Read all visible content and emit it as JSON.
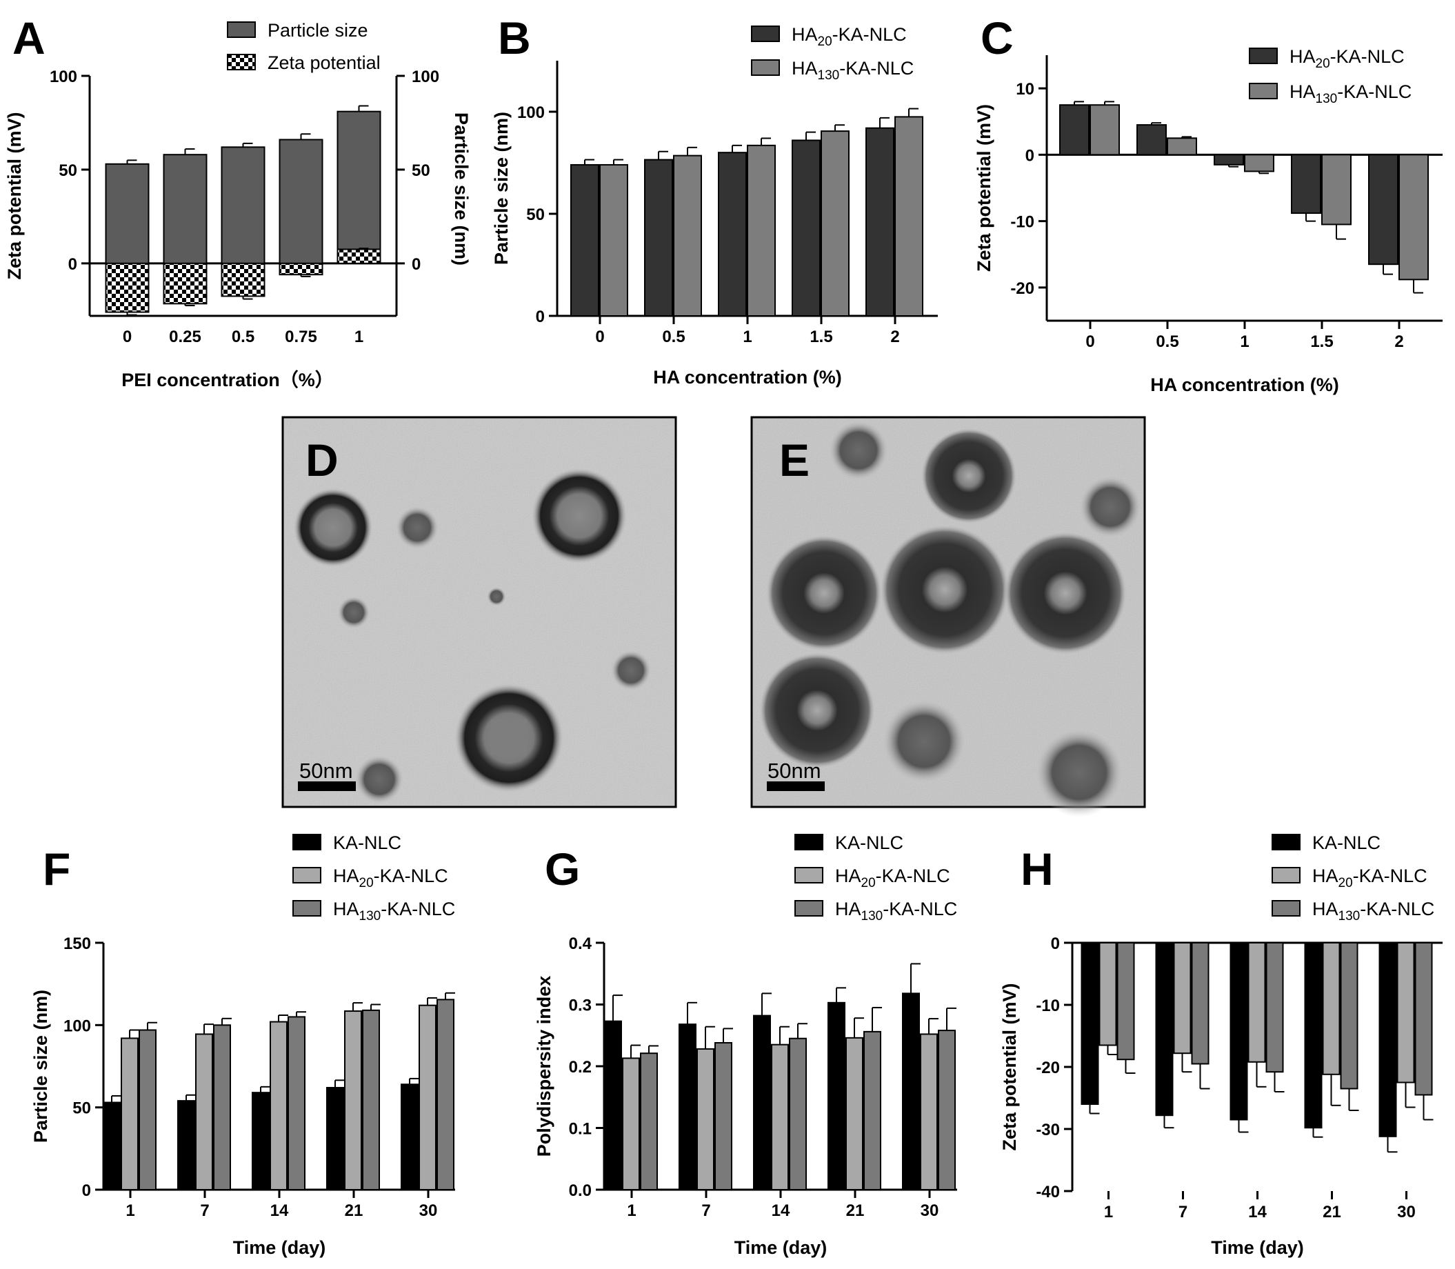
{
  "chart_data": [
    {
      "panel": "A",
      "type": "bar",
      "categories": [
        "0",
        "0.25",
        "0.5",
        "0.75",
        "1"
      ],
      "xlabel": "PEI concentration（%）",
      "ylabel_left": "Zeta potential (mV)",
      "ylabel_right": "Particle size (nm)",
      "ylim": [
        -28,
        100
      ],
      "yticks": [
        0,
        50,
        100
      ],
      "yticks_right": [
        0,
        50,
        100
      ],
      "series": [
        {
          "name": "Particle size",
          "values": [
            53,
            58,
            62,
            66,
            81
          ],
          "errors": [
            2,
            3,
            2,
            3,
            3
          ],
          "color": "#5c5c5c"
        },
        {
          "name": "Zeta potential",
          "values": [
            -26,
            -21.5,
            -17.5,
            -6,
            7.5
          ],
          "errors": [
            1.5,
            1,
            1.5,
            1,
            0.5
          ],
          "color": "checker"
        }
      ],
      "legend": "top-right"
    },
    {
      "panel": "B",
      "type": "bar",
      "categories": [
        "0",
        "0.5",
        "1",
        "1.5",
        "2"
      ],
      "xlabel": "HA concentration (%)",
      "ylabel": "Particle size (nm)",
      "ylim": [
        0,
        125
      ],
      "yticks": [
        0,
        50,
        100
      ],
      "series": [
        {
          "name": "HA20-KA-NLC",
          "name_main": "HA",
          "name_sub": "20",
          "name_tail": "-KA-NLC",
          "values": [
            74,
            76.5,
            80,
            86,
            92
          ],
          "errors": [
            2.5,
            4,
            3.5,
            4,
            5
          ],
          "color": "#333333"
        },
        {
          "name": "HA130-KA-NLC",
          "name_main": "HA",
          "name_sub": "130",
          "name_tail": "-KA-NLC",
          "values": [
            74,
            78.5,
            83.5,
            90.5,
            97.5
          ],
          "errors": [
            2.5,
            4,
            3.5,
            3,
            4
          ],
          "color": "#7d7d7d"
        }
      ],
      "legend": "top-right"
    },
    {
      "panel": "C",
      "type": "bar",
      "categories": [
        "0",
        "0.5",
        "1",
        "1.5",
        "2"
      ],
      "xlabel": "HA concentration (%)",
      "ylabel": "Zeta potential (mV)",
      "ylim": [
        -25,
        15
      ],
      "yticks": [
        10,
        0,
        -10,
        -20
      ],
      "zero_line": true,
      "series": [
        {
          "name": "HA20-KA-NLC",
          "name_main": "HA",
          "name_sub": "20",
          "name_tail": "-KA-NLC",
          "values": [
            7.5,
            4.5,
            -1.5,
            -8.8,
            -16.5
          ],
          "errors": [
            0.5,
            0.3,
            0.3,
            1.2,
            1.5
          ],
          "color": "#333333"
        },
        {
          "name": "HA130-KA-NLC",
          "name_main": "HA",
          "name_sub": "130",
          "name_tail": "-KA-NLC",
          "values": [
            7.5,
            2.5,
            -2.5,
            -10.5,
            -18.8
          ],
          "errors": [
            0.5,
            0.2,
            0.3,
            2.2,
            2
          ],
          "color": "#7d7d7d"
        }
      ],
      "legend": "top-right"
    },
    {
      "panel": "F",
      "type": "bar",
      "categories": [
        "1",
        "7",
        "14",
        "21",
        "30"
      ],
      "xlabel": "Time (day)",
      "ylabel": "Particle size (nm)",
      "ylim": [
        0,
        150
      ],
      "yticks": [
        0,
        50,
        100,
        150
      ],
      "series": [
        {
          "name": "KA-NLC",
          "name_main": "KA-NLC",
          "name_sub": "",
          "name_tail": "",
          "values": [
            53,
            54,
            59,
            62,
            64
          ],
          "errors": [
            4,
            3.5,
            3.5,
            4.5,
            3.5
          ],
          "color": "#000000"
        },
        {
          "name": "HA20-KA-NLC",
          "name_main": "HA",
          "name_sub": "20",
          "name_tail": "-KA-NLC",
          "values": [
            92,
            94.5,
            102,
            108.5,
            112
          ],
          "errors": [
            5,
            6,
            4,
            5,
            4.5
          ],
          "color": "#a8a8a8"
        },
        {
          "name": "HA130-KA-NLC",
          "name_main": "HA",
          "name_sub": "130",
          "name_tail": "-KA-NLC",
          "values": [
            97,
            100,
            105,
            109,
            115.5
          ],
          "errors": [
            4.5,
            4,
            3,
            3.5,
            4
          ],
          "color": "#7a7a7a"
        }
      ],
      "legend": "top-right"
    },
    {
      "panel": "G",
      "type": "bar",
      "categories": [
        "1",
        "7",
        "14",
        "21",
        "30"
      ],
      "xlabel": "Time (day)",
      "ylabel": "Polydispersity index",
      "ylim": [
        0,
        0.4
      ],
      "yticks": [
        0.0,
        0.1,
        0.2,
        0.3,
        0.4
      ],
      "series": [
        {
          "name": "KA-NLC",
          "name_main": "KA-NLC",
          "name_sub": "",
          "name_tail": "",
          "values": [
            0.273,
            0.268,
            0.282,
            0.303,
            0.318
          ],
          "errors": [
            0.042,
            0.035,
            0.036,
            0.024,
            0.048
          ],
          "color": "#000000"
        },
        {
          "name": "HA20-KA-NLC",
          "name_main": "HA",
          "name_sub": "20",
          "name_tail": "-KA-NLC",
          "values": [
            0.213,
            0.228,
            0.235,
            0.246,
            0.252
          ],
          "errors": [
            0.021,
            0.036,
            0.029,
            0.032,
            0.025
          ],
          "color": "#a8a8a8"
        },
        {
          "name": "HA130-KA-NLC",
          "name_main": "HA",
          "name_sub": "130",
          "name_tail": "-KA-NLC",
          "values": [
            0.221,
            0.238,
            0.245,
            0.256,
            0.258
          ],
          "errors": [
            0.012,
            0.023,
            0.024,
            0.039,
            0.036
          ],
          "color": "#7a7a7a"
        }
      ],
      "legend": "top-right"
    },
    {
      "panel": "H",
      "type": "bar",
      "categories": [
        "1",
        "7",
        "14",
        "21",
        "30"
      ],
      "xlabel": "Time (day)",
      "ylabel": "Zeta potential (mV)",
      "ylim": [
        -40,
        0
      ],
      "yticks": [
        0,
        -10,
        -20,
        -30,
        -40
      ],
      "series": [
        {
          "name": "KA-NLC",
          "name_main": "KA-NLC",
          "name_sub": "",
          "name_tail": "",
          "values": [
            -26,
            -27.8,
            -28.5,
            -29.8,
            -31.2
          ],
          "errors": [
            1.5,
            2,
            2,
            1.5,
            2.5
          ],
          "color": "#000000"
        },
        {
          "name": "HA20-KA-NLC",
          "name_main": "HA",
          "name_sub": "20",
          "name_tail": "-KA-NLC",
          "values": [
            -16.5,
            -17.8,
            -19.2,
            -21.2,
            -22.5
          ],
          "errors": [
            1.5,
            3,
            4,
            5,
            4
          ],
          "color": "#a8a8a8"
        },
        {
          "name": "HA130-KA-NLC",
          "name_main": "HA",
          "name_sub": "130",
          "name_tail": "-KA-NLC",
          "values": [
            -18.8,
            -19.5,
            -20.8,
            -23.5,
            -24.5
          ],
          "errors": [
            2.2,
            4,
            3.2,
            3.5,
            4
          ],
          "color": "#7a7a7a"
        }
      ],
      "legend": "top-right"
    }
  ],
  "images": [
    {
      "panel": "D",
      "scale_bar": "50nm"
    },
    {
      "panel": "E",
      "scale_bar": "50nm"
    }
  ]
}
